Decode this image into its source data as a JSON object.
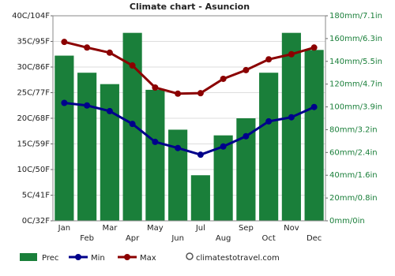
{
  "chart_data": {
    "type": "bar",
    "title": "Climate chart - Asuncion",
    "categories": [
      "Jan",
      "Feb",
      "Mar",
      "Apr",
      "May",
      "Jun",
      "Jul",
      "Aug",
      "Sep",
      "Oct",
      "Nov",
      "Dec"
    ],
    "series": [
      {
        "name": "Prec",
        "type": "bar",
        "axis": "y2",
        "color": "#1a7f3a",
        "values": [
          145,
          130,
          120,
          165,
          115,
          80,
          40,
          75,
          90,
          130,
          165,
          150
        ]
      },
      {
        "name": "Min",
        "type": "line",
        "color": "#00008b",
        "values": [
          23,
          22.5,
          21.4,
          18.9,
          15.4,
          14.2,
          12.9,
          14.5,
          16.5,
          19.4,
          20.2,
          22.2
        ]
      },
      {
        "name": "Max",
        "type": "line",
        "color": "#8b0000",
        "values": [
          34.9,
          33.8,
          32.8,
          30.3,
          26,
          24.8,
          24.9,
          27.7,
          29.4,
          31.5,
          32.5,
          33.8
        ]
      }
    ],
    "ylim": [
      0,
      40
    ],
    "yticks": [
      {
        "value": 0,
        "label": "0C/32F"
      },
      {
        "value": 5,
        "label": "5C/41F"
      },
      {
        "value": 10,
        "label": "10C/50F"
      },
      {
        "value": 15,
        "label": "15C/59F"
      },
      {
        "value": 20,
        "label": "20C/68F"
      },
      {
        "value": 25,
        "label": "25C/77F"
      },
      {
        "value": 30,
        "label": "30C/86F"
      },
      {
        "value": 35,
        "label": "35C/95F"
      },
      {
        "value": 40,
        "label": "40C/104F"
      }
    ],
    "y2lim": [
      0,
      180
    ],
    "y2ticks": [
      {
        "value": 0,
        "label": "0mm/0in"
      },
      {
        "value": 20,
        "label": "20mm/0.8in"
      },
      {
        "value": 40,
        "label": "40mm/1.6in"
      },
      {
        "value": 60,
        "label": "60mm/2.4in"
      },
      {
        "value": 80,
        "label": "80mm/3.2in"
      },
      {
        "value": 100,
        "label": "100mm/3.9in"
      },
      {
        "value": 120,
        "label": "120mm/4.7in"
      },
      {
        "value": 140,
        "label": "140mm/5.5in"
      },
      {
        "value": 160,
        "label": "160mm/6.3in"
      },
      {
        "value": 180,
        "label": "180mm/7.1in"
      }
    ],
    "grid": true,
    "watermark": "climatestotravel.com"
  }
}
